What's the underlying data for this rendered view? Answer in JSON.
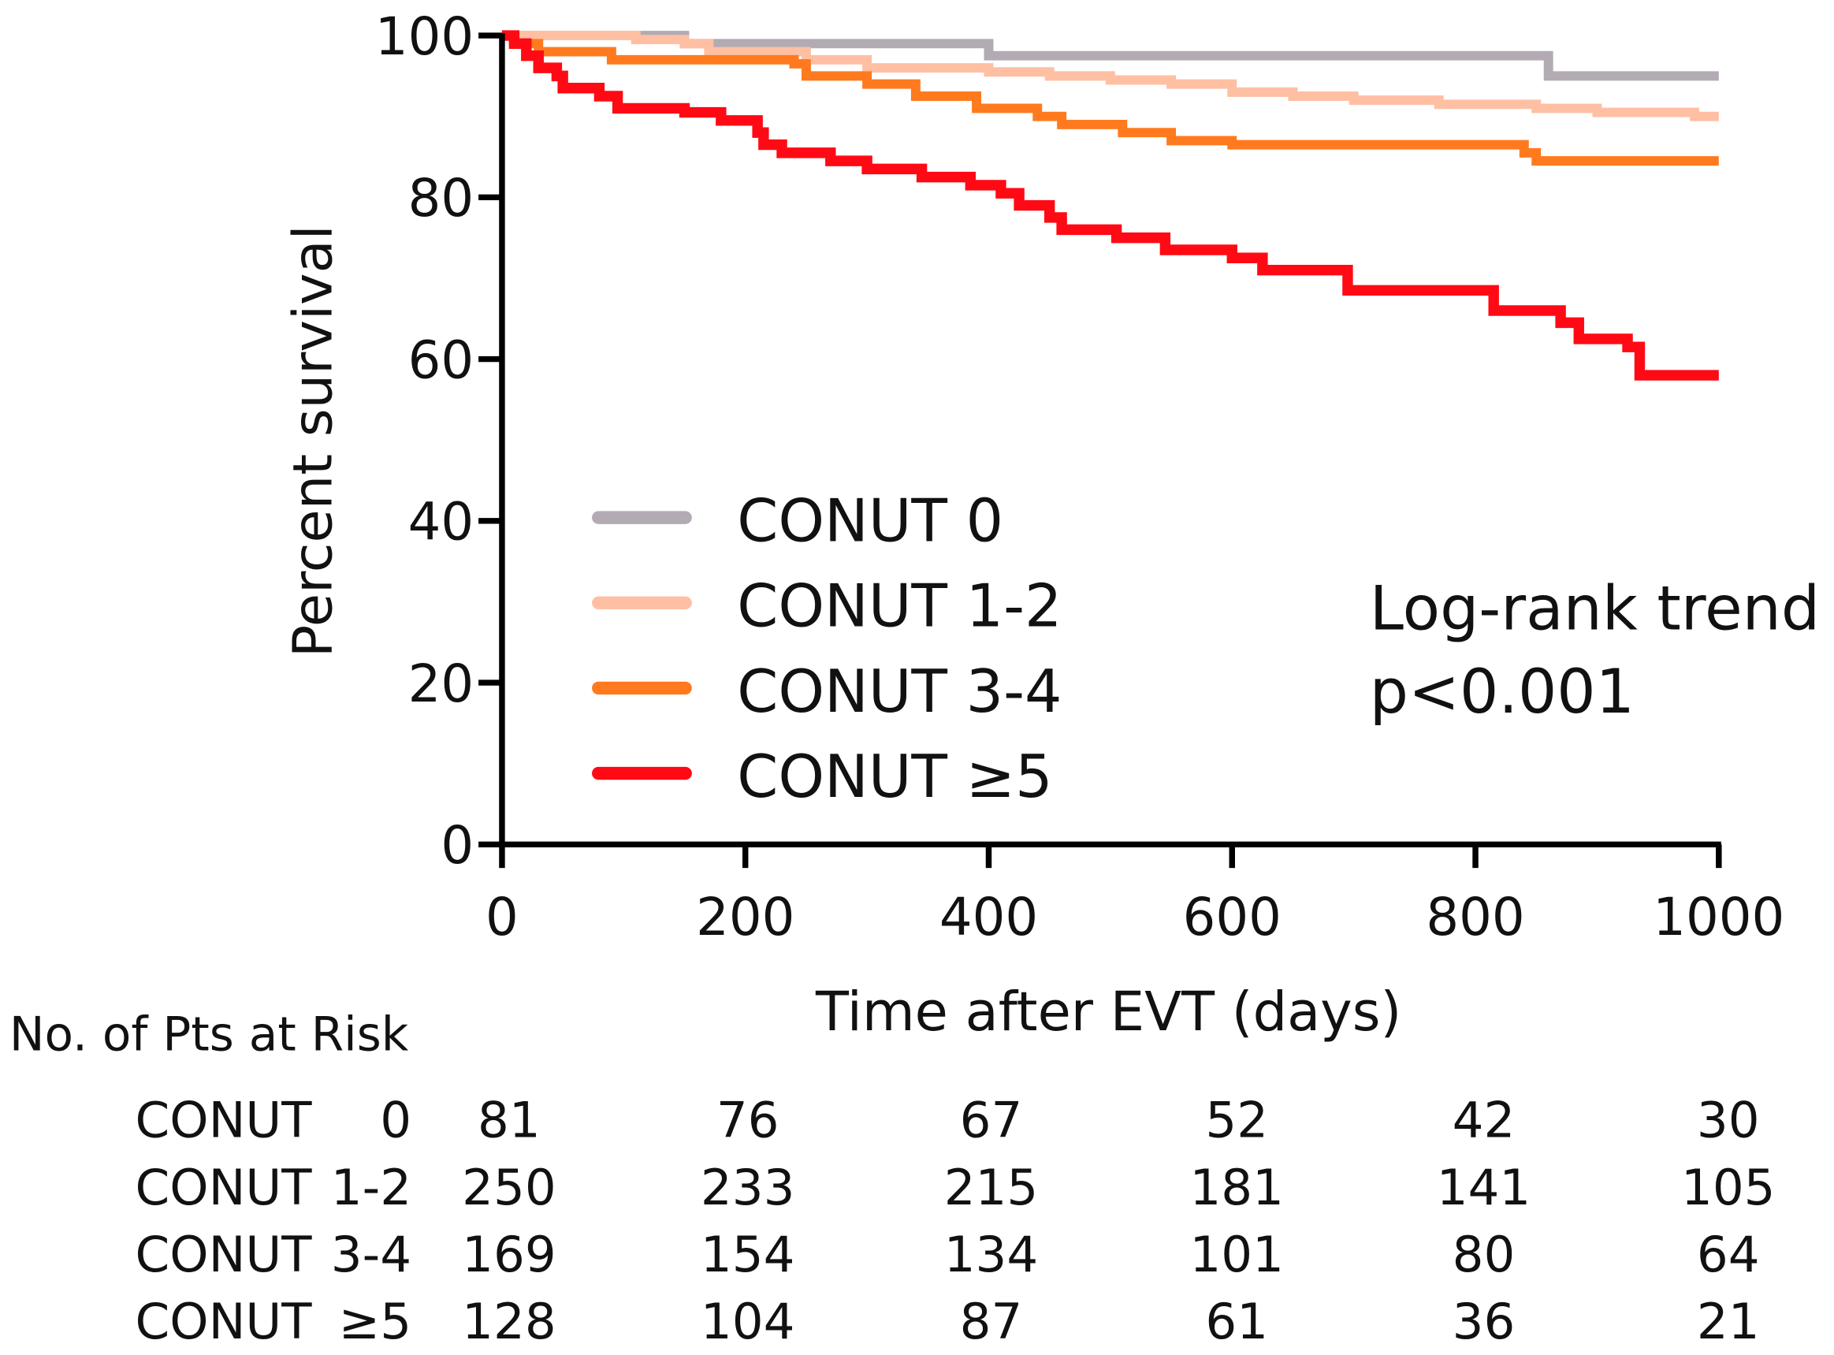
{
  "chart_data": {
    "type": "line",
    "subtype": "kaplan-meier step",
    "xlabel": "Time after EVT (days)",
    "ylabel": "Percent survival",
    "xlim": [
      0,
      1000
    ],
    "ylim": [
      0,
      100
    ],
    "xticks": [
      "0",
      "200",
      "400",
      "600",
      "800",
      "1000"
    ],
    "yticks": [
      "0",
      "20",
      "40",
      "60",
      "80",
      "100"
    ],
    "legend_placement": "center-left",
    "annotation": [
      "Log-rank trend",
      "p<0.001"
    ],
    "series": [
      {
        "name": "CONUT 0",
        "color": "#b3abb3",
        "x": [
          0,
          150,
          400,
          860,
          1000
        ],
        "y": [
          100,
          99,
          97.5,
          95,
          95
        ]
      },
      {
        "name": "CONUT 1-2",
        "color": "#ffbfa3",
        "x": [
          0,
          110,
          150,
          170,
          250,
          300,
          400,
          450,
          500,
          550,
          600,
          650,
          700,
          770,
          850,
          900,
          980,
          1000
        ],
        "y": [
          100,
          99.5,
          99,
          98,
          97,
          96,
          95.5,
          95,
          94.5,
          94,
          93,
          92.5,
          92,
          91.5,
          91,
          90.5,
          90,
          90
        ]
      },
      {
        "name": "CONUT 3-4",
        "color": "#ff7a1e",
        "x": [
          0,
          10,
          30,
          90,
          240,
          250,
          300,
          340,
          390,
          440,
          460,
          510,
          550,
          600,
          840,
          850,
          1000
        ],
        "y": [
          100,
          99,
          98,
          97,
          96.5,
          95,
          94,
          92.5,
          91,
          90,
          89,
          88,
          87,
          86.5,
          85.5,
          84.5,
          84.5
        ]
      },
      {
        "name": "CONUT ≥5",
        "color": "#ff0a14",
        "x": [
          0,
          10,
          20,
          30,
          45,
          50,
          80,
          95,
          150,
          180,
          210,
          215,
          230,
          270,
          300,
          345,
          385,
          410,
          425,
          450,
          460,
          505,
          545,
          600,
          625,
          695,
          815,
          870,
          885,
          925,
          935,
          1000
        ],
        "y": [
          100,
          99,
          97.5,
          96,
          95,
          93.5,
          92.5,
          91,
          90.5,
          89.5,
          88,
          86.5,
          85.5,
          84.5,
          83.5,
          82.5,
          81.5,
          80.5,
          79,
          77.5,
          76,
          75,
          73.5,
          72.5,
          71,
          68.5,
          66,
          64.5,
          62.5,
          61.5,
          58,
          58
        ]
      }
    ],
    "risk_table": {
      "title": "No. of Pts at Risk",
      "rows": [
        {
          "label": "CONUT",
          "group": "0",
          "values": [
            "81",
            "76",
            "67",
            "52",
            "42",
            "30"
          ]
        },
        {
          "label": "CONUT",
          "group": "1-2",
          "values": [
            "250",
            "233",
            "215",
            "181",
            "141",
            "105"
          ]
        },
        {
          "label": "CONUT",
          "group": "3-4",
          "values": [
            "169",
            "154",
            "134",
            "101",
            "80",
            "64"
          ]
        },
        {
          "label": "CONUT",
          "group": "≥5",
          "values": [
            "128",
            "104",
            "87",
            "61",
            "36",
            "21"
          ]
        }
      ]
    }
  }
}
